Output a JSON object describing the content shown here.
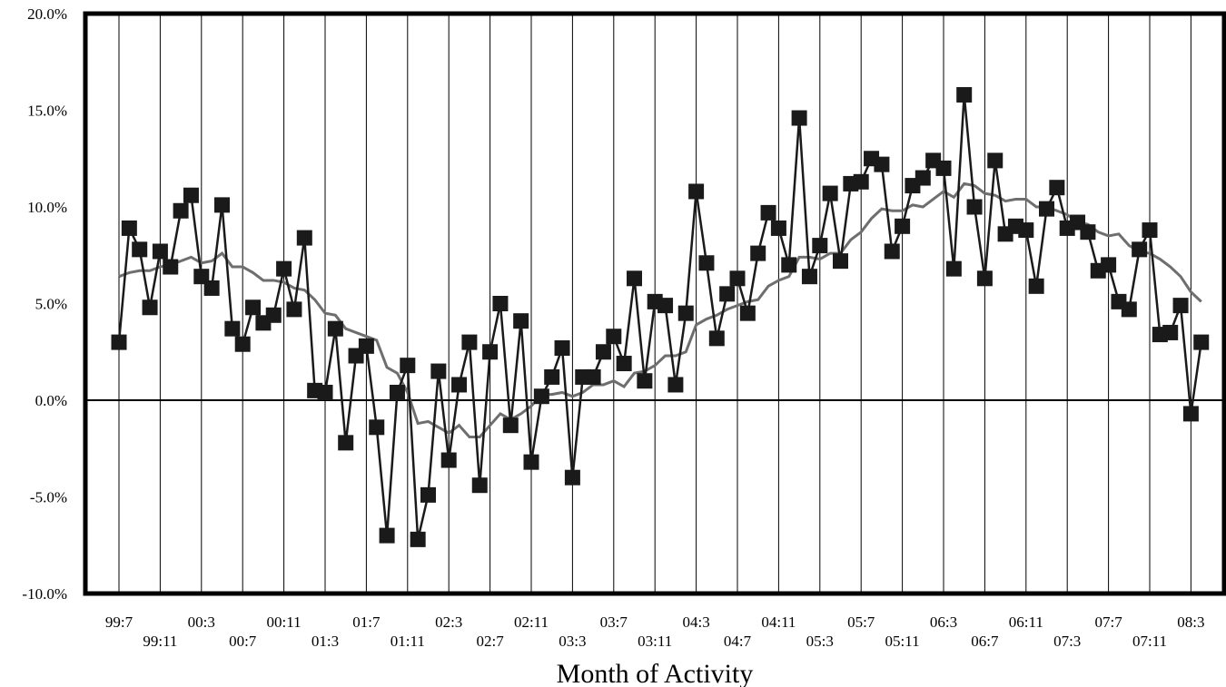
{
  "chart_data": {
    "type": "line",
    "title": "",
    "xlabel": "Month of Activity",
    "ylabel": "",
    "ylim": [
      -10,
      20
    ],
    "grid": "vertical lines every 4 months",
    "y_tick_labels": [
      "20.0%",
      "15.0%",
      "10.0%",
      "5.0%",
      "0.0%",
      "-5.0%",
      "-10.0%"
    ],
    "y_tick_values": [
      20,
      15,
      10,
      5,
      0,
      -5,
      -10
    ],
    "x_tick_labels_upper": [
      "99:7",
      "00:3",
      "00:11",
      "01:7",
      "02:3",
      "02:11",
      "03:7",
      "04:3",
      "04:11",
      "05:7",
      "06:3",
      "06:11",
      "07:7",
      "08:3"
    ],
    "x_tick_labels_lower": [
      "99:11",
      "00:7",
      "01:3",
      "01:11",
      "02:7",
      "03:3",
      "03:11",
      "04:7",
      "05:3",
      "05:11",
      "06:7",
      "07:3",
      "07:11"
    ],
    "x_start": "99:7",
    "series": [
      {
        "values": [
          3.0,
          8.9,
          7.8,
          4.8,
          7.7,
          6.9,
          9.8,
          10.6,
          6.4,
          5.8,
          10.1,
          3.7,
          2.9,
          4.8,
          4.0,
          4.4,
          6.8,
          4.7,
          8.4,
          0.5,
          0.4,
          3.7,
          -2.2,
          2.3,
          2.8,
          -1.4,
          -7.0,
          0.4,
          1.8,
          -7.2,
          -4.9,
          1.5,
          -3.1,
          0.8,
          3.0,
          -4.4,
          2.5,
          5.0,
          -1.3,
          4.1,
          -3.2,
          0.2,
          1.2,
          2.7,
          -4.0,
          1.2,
          1.2,
          2.5,
          3.3,
          1.9,
          6.3,
          1.0,
          5.1,
          4.9,
          0.8,
          4.5,
          10.8,
          7.1,
          3.2,
          5.5,
          6.3,
          4.5,
          7.6,
          9.7,
          8.9,
          7.0,
          14.6,
          6.4,
          8.0,
          10.7,
          7.2,
          11.2,
          11.3,
          12.5,
          12.2,
          7.7,
          9.0,
          11.1,
          11.5,
          12.4,
          12.0,
          6.8,
          15.8,
          10.0,
          6.3,
          12.4,
          8.6,
          9.0,
          8.8,
          5.9,
          9.9,
          11.0,
          8.9,
          9.2,
          8.7,
          6.7,
          7.0,
          5.1,
          4.7,
          7.8,
          8.8,
          3.4,
          3.5,
          4.9,
          -0.7,
          3.0
        ],
        "style": "black line with square markers",
        "color": "#1a1a1a"
      },
      {
        "values": [
          6.4,
          6.6,
          6.7,
          6.7,
          6.9,
          7.0,
          7.2,
          7.4,
          7.1,
          7.2,
          7.6,
          6.9,
          6.9,
          6.6,
          6.2,
          6.2,
          6.1,
          5.8,
          5.7,
          5.2,
          4.5,
          4.4,
          3.7,
          3.5,
          3.3,
          3.1,
          1.7,
          1.4,
          0.4,
          -1.2,
          -1.1,
          -1.4,
          -1.7,
          -1.3,
          -1.9,
          -1.9,
          -1.3,
          -0.7,
          -1.0,
          -0.7,
          -0.3,
          0.3,
          0.3,
          0.4,
          0.2,
          0.4,
          0.8,
          0.8,
          1.0,
          0.7,
          1.4,
          1.5,
          1.8,
          2.3,
          2.3,
          2.5,
          3.9,
          4.2,
          4.4,
          4.7,
          4.9,
          5.1,
          5.2,
          5.9,
          6.2,
          6.4,
          7.4,
          7.4,
          7.3,
          7.6,
          7.6,
          8.3,
          8.7,
          9.4,
          9.9,
          9.8,
          9.8,
          10.1,
          10.0,
          10.4,
          10.8,
          10.5,
          11.2,
          11.1,
          10.7,
          10.6,
          10.3,
          10.4,
          10.4,
          10.0,
          10.0,
          9.8,
          9.6,
          9.2,
          9.1,
          8.7,
          8.5,
          8.6,
          8.0,
          7.7,
          7.6,
          7.3,
          6.9,
          6.4,
          5.6,
          5.1
        ],
        "style": "gray moving-average line",
        "color": "#6e6e6e"
      }
    ]
  }
}
